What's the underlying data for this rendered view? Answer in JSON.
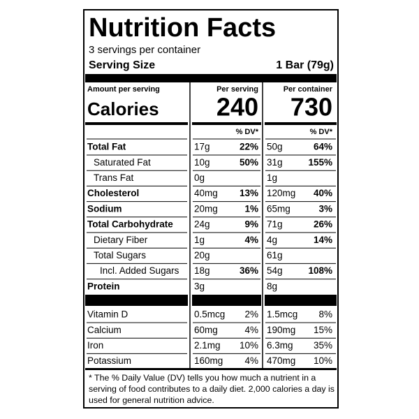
{
  "header": {
    "title": "Nutrition Facts",
    "servings": "3 servings per container",
    "serving_size_label": "Serving Size",
    "serving_size": "1 Bar (79g)"
  },
  "columns": {
    "amount_label": "Amount per serving",
    "per_serving": "Per serving",
    "per_container": "Per container"
  },
  "calories": {
    "label": "Calories",
    "per_serving": "240",
    "per_container": "730"
  },
  "dv_header": {
    "per_serving": "% DV*",
    "per_container": "% DV*"
  },
  "nutrients": [
    {
      "name": "Total Fat",
      "bold": true,
      "indent": 0,
      "serving_amount": "17g",
      "serving_dv": "22%",
      "container_amount": "50g",
      "container_dv": "64%"
    },
    {
      "name": "Saturated Fat",
      "bold": false,
      "indent": 1,
      "serving_amount": "10g",
      "serving_dv": "50%",
      "container_amount": "31g",
      "container_dv": "155%"
    },
    {
      "name": "Trans Fat",
      "bold": false,
      "indent": 1,
      "serving_amount": "0g",
      "container_amount": "1g"
    },
    {
      "name": "Cholesterol",
      "bold": true,
      "indent": 0,
      "serving_amount": "40mg",
      "serving_dv": "13%",
      "container_amount": "120mg",
      "container_dv": "40%"
    },
    {
      "name": "Sodium",
      "bold": true,
      "indent": 0,
      "serving_amount": "20mg",
      "serving_dv": "1%",
      "container_amount": "65mg",
      "container_dv": "3%"
    },
    {
      "name": "Total Carbohydrate",
      "bold": true,
      "indent": 0,
      "serving_amount": "24g",
      "serving_dv": "9%",
      "container_amount": "71g",
      "container_dv": "26%"
    },
    {
      "name": "Dietary Fiber",
      "bold": false,
      "indent": 1,
      "serving_amount": "1g",
      "serving_dv": "4%",
      "container_amount": "4g",
      "container_dv": "14%"
    },
    {
      "name": "Total Sugars",
      "bold": false,
      "indent": 1,
      "serving_amount": "20g",
      "container_amount": "61g"
    },
    {
      "name": "Incl. Added Sugars",
      "bold": false,
      "indent": 2,
      "serving_amount": "18g",
      "serving_dv": "36%",
      "container_amount": "54g",
      "container_dv": "108%"
    },
    {
      "name": "Protein",
      "bold": true,
      "indent": 0,
      "serving_amount": "3g",
      "container_amount": "8g"
    }
  ],
  "vitamins": [
    {
      "name": "Vitamin D",
      "serving_amount": "0.5mcg",
      "serving_dv": "2%",
      "container_amount": "1.5mcg",
      "container_dv": "8%"
    },
    {
      "name": "Calcium",
      "serving_amount": "60mg",
      "serving_dv": "4%",
      "container_amount": "190mg",
      "container_dv": "15%"
    },
    {
      "name": "Iron",
      "serving_amount": "2.1mg",
      "serving_dv": "10%",
      "container_amount": "6.3mg",
      "container_dv": "35%"
    },
    {
      "name": "Potassium",
      "serving_amount": "160mg",
      "serving_dv": "4%",
      "container_amount": "470mg",
      "container_dv": "10%"
    }
  ],
  "footnote": "* The % Daily Value (DV) tells you how much a nutrient in a serving of food contributes to a daily diet. 2,000 calories a day is used for general nutrition advice."
}
